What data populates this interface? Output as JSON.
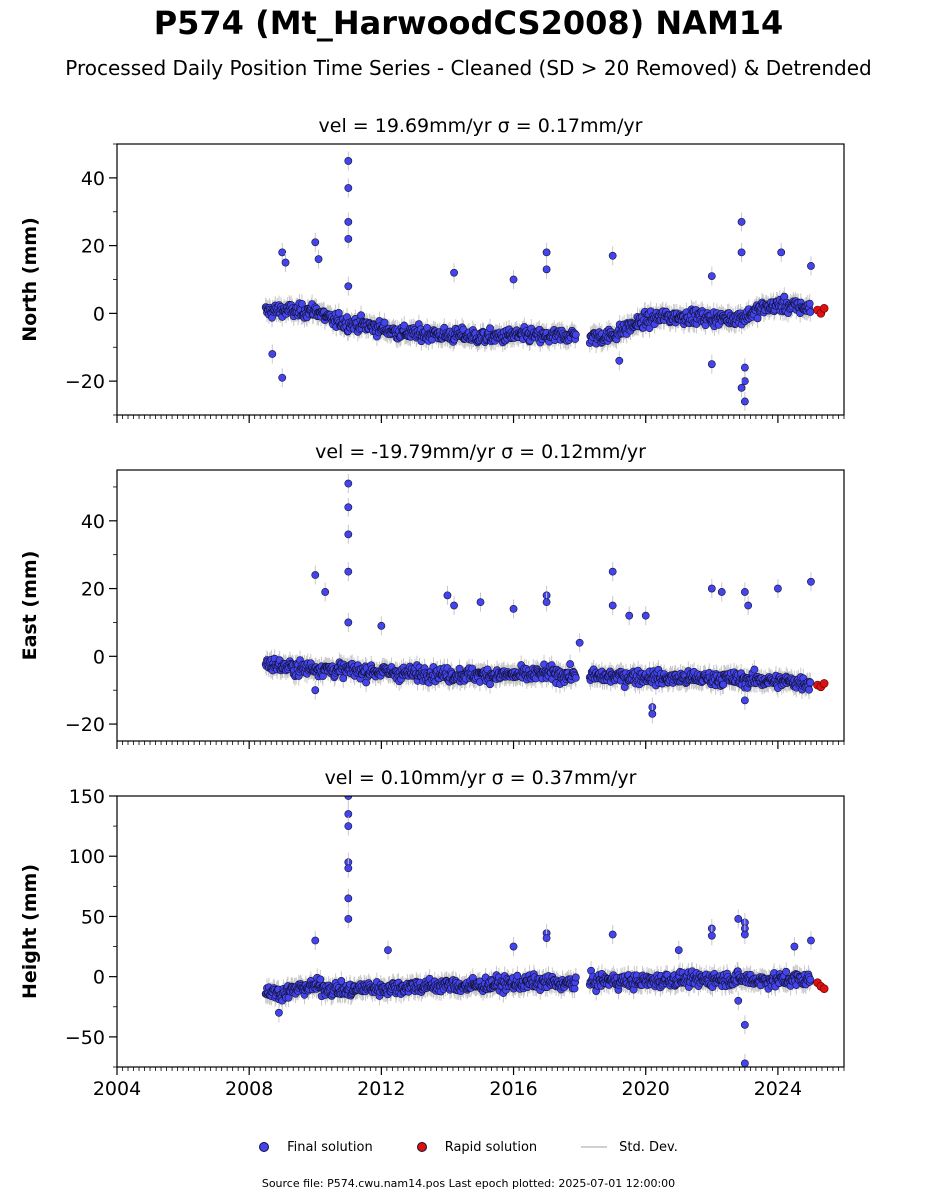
{
  "title": "P574 (Mt_HarwoodCS2008) NAM14",
  "subtitle": "Processed Daily Position Time Series - Cleaned (SD > 20 Removed) & Detrended",
  "legend": {
    "final": "Final solution",
    "rapid": "Rapid solution",
    "std": "Std. Dev."
  },
  "footer": "Source file: P574.cwu.nam14.pos  Last epoch plotted: 2025-07-01 12:00:00",
  "colors": {
    "final": "#4444ee",
    "rapid": "#dd1111",
    "std_dev": "#c8c8c8",
    "marker_edge": "#111133"
  },
  "chart_data": [
    {
      "type": "scatter",
      "title": "vel = 19.69mm/yr   σ = 0.17mm/yr",
      "xlabel": "",
      "ylabel": "North (mm)",
      "xlim": [
        2004,
        2026
      ],
      "ylim": [
        -30,
        50
      ],
      "xticks": [
        2004,
        2008,
        2012,
        2016,
        2020,
        2024
      ],
      "yticks": [
        -20,
        0,
        20,
        40
      ],
      "ytick_labels": [
        "−20",
        "0",
        "20",
        "40"
      ],
      "grid": false,
      "series": [
        {
          "name": "Final solution",
          "x": [
            2008.5,
            2009.0,
            2009.5,
            2010.0,
            2010.5,
            2011.0,
            2011.5,
            2012.0,
            2012.5,
            2013.0,
            2013.5,
            2014.0,
            2014.5,
            2015.0,
            2015.5,
            2016.0,
            2016.5,
            2017.0,
            2017.5,
            2018.0,
            2018.5,
            2019.0,
            2019.5,
            2020.0,
            2020.5,
            2021.0,
            2021.5,
            2022.0,
            2022.5,
            2023.0,
            2023.5,
            2024.0,
            2024.5,
            2025.0
          ],
          "y": [
            0.5,
            1.0,
            0.5,
            1.0,
            -2.0,
            -3.0,
            -3.5,
            -4.5,
            -5.5,
            -6.0,
            -6.0,
            -6.5,
            -6.5,
            -7.0,
            -7.0,
            -6.5,
            -6.5,
            -7.0,
            -6.5,
            -6.5,
            -7.0,
            -6.5,
            -4.0,
            -2.0,
            -1.0,
            -1.0,
            -1.0,
            -1.5,
            -1.5,
            -1.0,
            1.5,
            2.5,
            2.0,
            1.5
          ]
        },
        {
          "name": "Rapid solution",
          "x": [
            2025.2,
            2025.3,
            2025.4
          ],
          "y": [
            1.0,
            0.0,
            1.5
          ]
        }
      ],
      "outliers": {
        "x": [
          2008.7,
          2009.0,
          2009.1,
          2010.0,
          2010.1,
          2011.0,
          2011.0,
          2011.0,
          2011.0,
          2011.0,
          2014.2,
          2016.0,
          2017.0,
          2017.0,
          2019.0,
          2022.0,
          2022.9,
          2022.9,
          2023.0,
          2023.0,
          2024.1,
          2025.0,
          2009.0,
          2019.2,
          2022.0,
          2022.9,
          2023.0
        ],
        "y": [
          -12,
          18,
          15,
          21,
          16,
          45,
          37,
          27,
          22,
          8,
          12,
          10,
          18,
          13,
          17,
          11,
          18,
          27,
          -20,
          -26,
          18,
          14,
          -19,
          -14,
          -15,
          -22,
          -16
        ]
      }
    },
    {
      "type": "scatter",
      "title": "vel = -19.79mm/yr   σ = 0.12mm/yr",
      "xlabel": "",
      "ylabel": "East (mm)",
      "xlim": [
        2004,
        2026
      ],
      "ylim": [
        -25,
        55
      ],
      "xticks": [
        2004,
        2008,
        2012,
        2016,
        2020,
        2024
      ],
      "yticks": [
        -20,
        0,
        20,
        40
      ],
      "ytick_labels": [
        "−20",
        "0",
        "20",
        "40"
      ],
      "grid": false,
      "series": [
        {
          "name": "Final solution",
          "x": [
            2008.5,
            2009.0,
            2009.5,
            2010.0,
            2010.5,
            2011.0,
            2011.5,
            2012.0,
            2012.5,
            2013.0,
            2013.5,
            2014.0,
            2014.5,
            2015.0,
            2015.5,
            2016.0,
            2016.5,
            2017.0,
            2017.5,
            2018.0,
            2018.5,
            2019.0,
            2019.5,
            2020.0,
            2020.5,
            2021.0,
            2021.5,
            2022.0,
            2022.5,
            2023.0,
            2023.5,
            2024.0,
            2024.5,
            2025.0
          ],
          "y": [
            -2.0,
            -3.0,
            -3.5,
            -3.5,
            -4.0,
            -4.0,
            -4.5,
            -4.5,
            -5.0,
            -5.0,
            -5.0,
            -5.5,
            -5.5,
            -5.5,
            -5.5,
            -5.5,
            -5.5,
            -5.0,
            -5.5,
            -5.5,
            -6.0,
            -6.0,
            -6.0,
            -6.0,
            -6.5,
            -6.5,
            -6.5,
            -6.5,
            -6.5,
            -7.0,
            -7.0,
            -7.5,
            -7.5,
            -8.0
          ]
        },
        {
          "name": "Rapid solution",
          "x": [
            2025.2,
            2025.3,
            2025.4
          ],
          "y": [
            -8.5,
            -9.0,
            -8.0
          ]
        }
      ],
      "outliers": {
        "x": [
          2010.0,
          2010.3,
          2011.0,
          2011.0,
          2011.0,
          2011.0,
          2011.0,
          2012.0,
          2014.0,
          2014.2,
          2015.0,
          2016.0,
          2017.0,
          2017.0,
          2018.0,
          2019.0,
          2019.0,
          2019.5,
          2020.0,
          2022.0,
          2022.3,
          2023.0,
          2023.1,
          2024.0,
          2025.0,
          2010.0,
          2020.2,
          2020.2,
          2023.0
        ],
        "y": [
          24,
          19,
          51,
          44,
          36,
          25,
          10,
          9,
          18,
          15,
          16,
          14,
          18,
          16,
          4,
          25,
          15,
          12,
          12,
          20,
          19,
          19,
          15,
          20,
          22,
          -10,
          -15,
          -17,
          -13
        ]
      }
    },
    {
      "type": "scatter",
      "title": "vel = 0.10mm/yr   σ = 0.37mm/yr",
      "xlabel": "",
      "ylabel": "Height (mm)",
      "xlim": [
        2004,
        2026
      ],
      "ylim": [
        -75,
        150
      ],
      "xticks": [
        2004,
        2008,
        2012,
        2016,
        2020,
        2024
      ],
      "yticks": [
        -50,
        0,
        50,
        100,
        150
      ],
      "ytick_labels": [
        "−50",
        "0",
        "50",
        "100",
        "150"
      ],
      "xtick_labels": [
        "2004",
        "2008",
        "2012",
        "2016",
        "2020",
        "2024"
      ],
      "grid": false,
      "series": [
        {
          "name": "Final solution",
          "x": [
            2008.5,
            2009.0,
            2009.5,
            2010.0,
            2010.5,
            2011.0,
            2011.5,
            2012.0,
            2012.5,
            2013.0,
            2013.5,
            2014.0,
            2014.5,
            2015.0,
            2015.5,
            2016.0,
            2016.5,
            2017.0,
            2017.5,
            2018.0,
            2018.5,
            2019.0,
            2019.5,
            2020.0,
            2020.5,
            2021.0,
            2021.5,
            2022.0,
            2022.5,
            2023.0,
            2023.5,
            2024.0,
            2024.5,
            2025.0
          ],
          "y": [
            -12,
            -14,
            -10,
            -8,
            -10,
            -12,
            -9,
            -10,
            -9,
            -8,
            -8,
            -7,
            -8,
            -7,
            -6,
            -6,
            -5,
            -5,
            -6,
            -5,
            -4,
            -3,
            -4,
            -4,
            -3,
            -2,
            -3,
            -2,
            -2,
            -2,
            -3,
            -3,
            -2,
            -3
          ]
        },
        {
          "name": "Rapid solution",
          "x": [
            2025.2,
            2025.3,
            2025.4
          ],
          "y": [
            -5,
            -8,
            -10
          ]
        }
      ],
      "outliers": {
        "x": [
          2011.0,
          2011.0,
          2011.0,
          2011.0,
          2011.0,
          2011.0,
          2011.0,
          2010.0,
          2012.2,
          2016.0,
          2017.0,
          2017.0,
          2019.0,
          2021.0,
          2022.0,
          2022.0,
          2022.8,
          2023.0,
          2023.0,
          2023.0,
          2024.5,
          2025.0,
          2008.9,
          2022.8,
          2023.0,
          2023.0
        ],
        "y": [
          150,
          135,
          125,
          95,
          90,
          65,
          48,
          30,
          22,
          25,
          36,
          32,
          35,
          22,
          40,
          34,
          48,
          45,
          40,
          35,
          25,
          30,
          -30,
          -20,
          -40,
          -72
        ]
      }
    }
  ]
}
